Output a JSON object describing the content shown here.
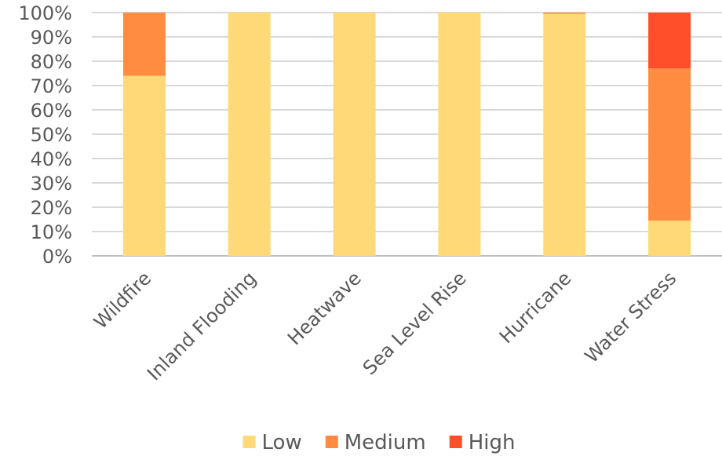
{
  "chart_data": {
    "type": "bar",
    "stacked": true,
    "percent": true,
    "categories": [
      "Wildfire",
      "Inland Flooding",
      "Heatwave",
      "Sea Level Rise",
      "Hurricane",
      "Water Stress"
    ],
    "series": [
      {
        "name": "Low",
        "color": "#FFD878",
        "values": [
          74,
          100,
          100,
          100,
          99.5,
          14.5
        ]
      },
      {
        "name": "Medium",
        "color": "#FF8C40",
        "values": [
          26,
          0,
          0,
          0,
          0.5,
          62.5
        ]
      },
      {
        "name": "High",
        "color": "#FF4F2A",
        "values": [
          0,
          0,
          0,
          0,
          0,
          23
        ]
      }
    ],
    "y_ticks": [
      "0%",
      "10%",
      "20%",
      "30%",
      "40%",
      "50%",
      "60%",
      "70%",
      "80%",
      "90%",
      "100%"
    ],
    "ylim": [
      0,
      100
    ],
    "grid": true,
    "legend": "bottom",
    "title": "",
    "xlabel": "",
    "ylabel": ""
  }
}
